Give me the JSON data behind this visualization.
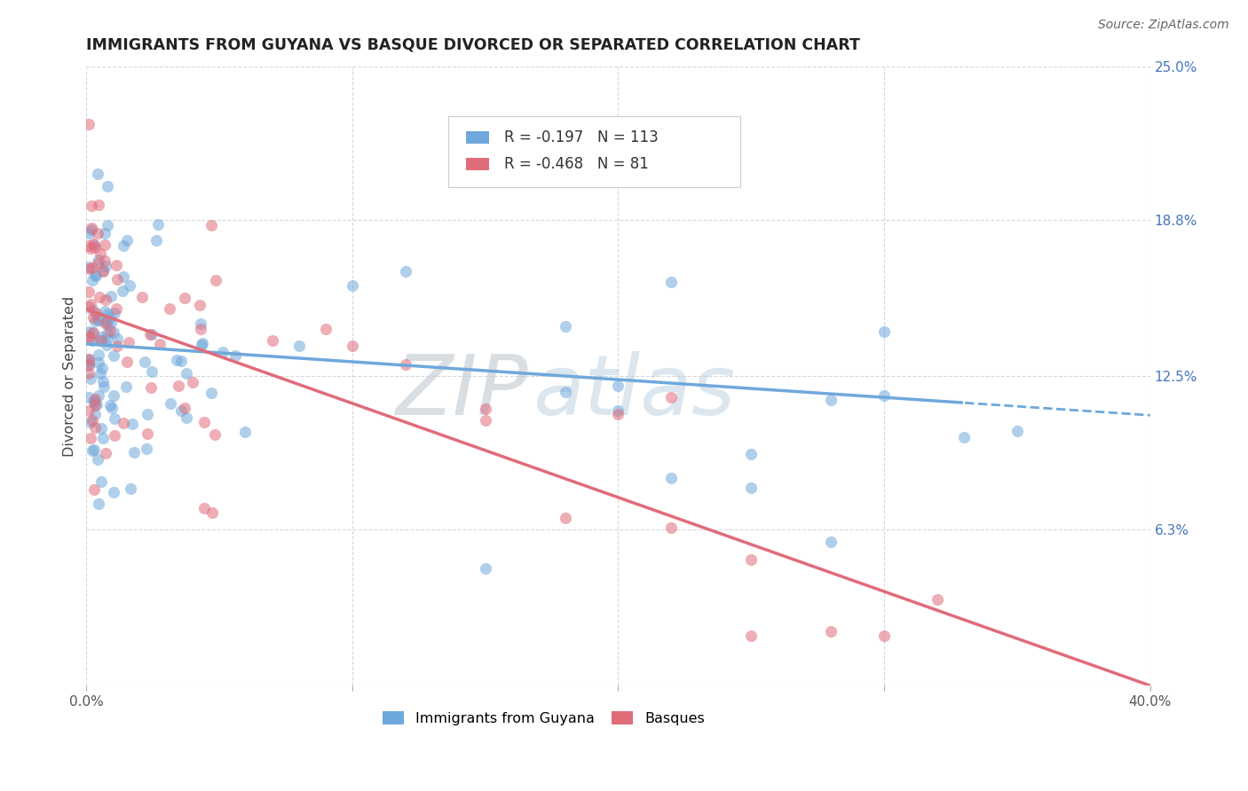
{
  "title": "IMMIGRANTS FROM GUYANA VS BASQUE DIVORCED OR SEPARATED CORRELATION CHART",
  "source": "Source: ZipAtlas.com",
  "ylabel": "Divorced or Separated",
  "xlim": [
    0.0,
    0.4
  ],
  "ylim": [
    0.0,
    0.25
  ],
  "blue_color": "#6fa8dc",
  "pink_color": "#e06c7a",
  "blue_R": -0.197,
  "blue_N": 113,
  "pink_R": -0.468,
  "pink_N": 81,
  "legend_label_blue": "Immigrants from Guyana",
  "legend_label_pink": "Basques",
  "watermark_zip": "ZIP",
  "watermark_atlas": "atlas",
  "background_color": "#ffffff",
  "grid_color": "#d8d8d8",
  "blue_intercept": 0.138,
  "blue_slope": -0.072,
  "pink_intercept": 0.152,
  "pink_slope": -0.38,
  "ytick_right_values": [
    0.0,
    0.063,
    0.125,
    0.188,
    0.25
  ],
  "ytick_right_labels": [
    "",
    "6.3%",
    "12.5%",
    "18.8%",
    "25.0%"
  ],
  "xtick_values": [
    0.0,
    0.1,
    0.2,
    0.3,
    0.4
  ],
  "xtick_labels": [
    "0.0%",
    "",
    "",
    "",
    "40.0%"
  ]
}
